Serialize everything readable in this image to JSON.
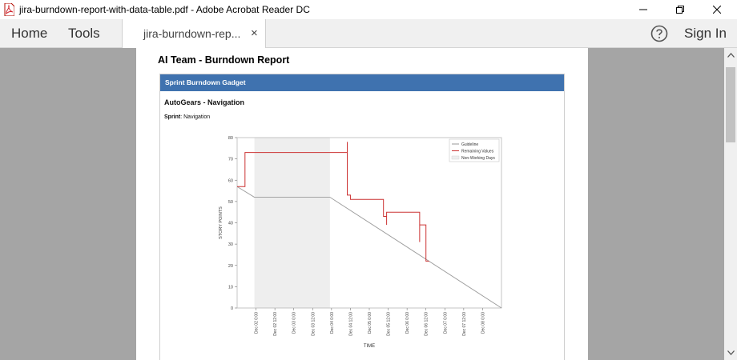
{
  "window": {
    "title": "jira-burndown-report-with-data-table.pdf - Adobe Acrobat Reader DC",
    "icon": "pdf-file-icon"
  },
  "menubar": {
    "home": "Home",
    "tools": "Tools",
    "tab_label": "jira-burndown-rep...",
    "tab_close": "×",
    "help_icon": "help-icon",
    "sign_in": "Sign In"
  },
  "report": {
    "title": "AI Team - Burndown Report",
    "gadget_header": "Sprint Burndown Gadget",
    "board": "AutoGears - Navigation",
    "sprint_label": "Sprint",
    "sprint_value": ": Navigation"
  },
  "chart_data": {
    "type": "line",
    "xlabel": "TIME",
    "ylabel": "STORY POINTS",
    "ylim": [
      0,
      80
    ],
    "yticks": [
      "0",
      "10",
      "20",
      "30",
      "40",
      "50",
      "60",
      "70",
      "80"
    ],
    "xlim_hours": [
      -12,
      156
    ],
    "xticks": [
      "Dec 02 0:00",
      "Dec 02 12:00",
      "Dec 03 0:00",
      "Dec 03 12:00",
      "Dec 04 0:00",
      "Dec 04 12:00",
      "Dec 05 0:00",
      "Dec 05 12:00",
      "Dec 06 0:00",
      "Dec 06 12:00",
      "Dec 07 0:00",
      "Dec 07 12:00",
      "Dec 08 0:00"
    ],
    "legend": [
      "Guideline",
      "Remaining Values",
      "Non-Working Days"
    ],
    "legend_position": "top-right",
    "colors": {
      "guideline": "#9a9a9a",
      "remaining": "#cc3333",
      "nonworking": "#eeeeee"
    },
    "non_working_range": [
      -1,
      47
    ],
    "guideline": [
      [
        -12,
        57
      ],
      [
        -1,
        52
      ],
      [
        47,
        52
      ],
      [
        156,
        0
      ]
    ],
    "remaining": [
      [
        -12,
        57
      ],
      [
        -7,
        57
      ],
      [
        -7,
        73
      ],
      [
        58,
        73
      ],
      [
        58,
        78
      ],
      [
        58,
        53
      ],
      [
        60,
        53
      ],
      [
        60,
        51
      ],
      [
        81,
        51
      ],
      [
        81,
        43
      ],
      [
        83,
        43
      ],
      [
        83,
        39
      ],
      [
        83,
        45
      ],
      [
        104,
        45
      ],
      [
        104,
        31
      ],
      [
        104,
        39
      ],
      [
        106,
        39
      ],
      [
        106,
        39
      ],
      [
        108,
        39
      ],
      [
        108,
        22
      ],
      [
        110,
        22
      ]
    ]
  }
}
